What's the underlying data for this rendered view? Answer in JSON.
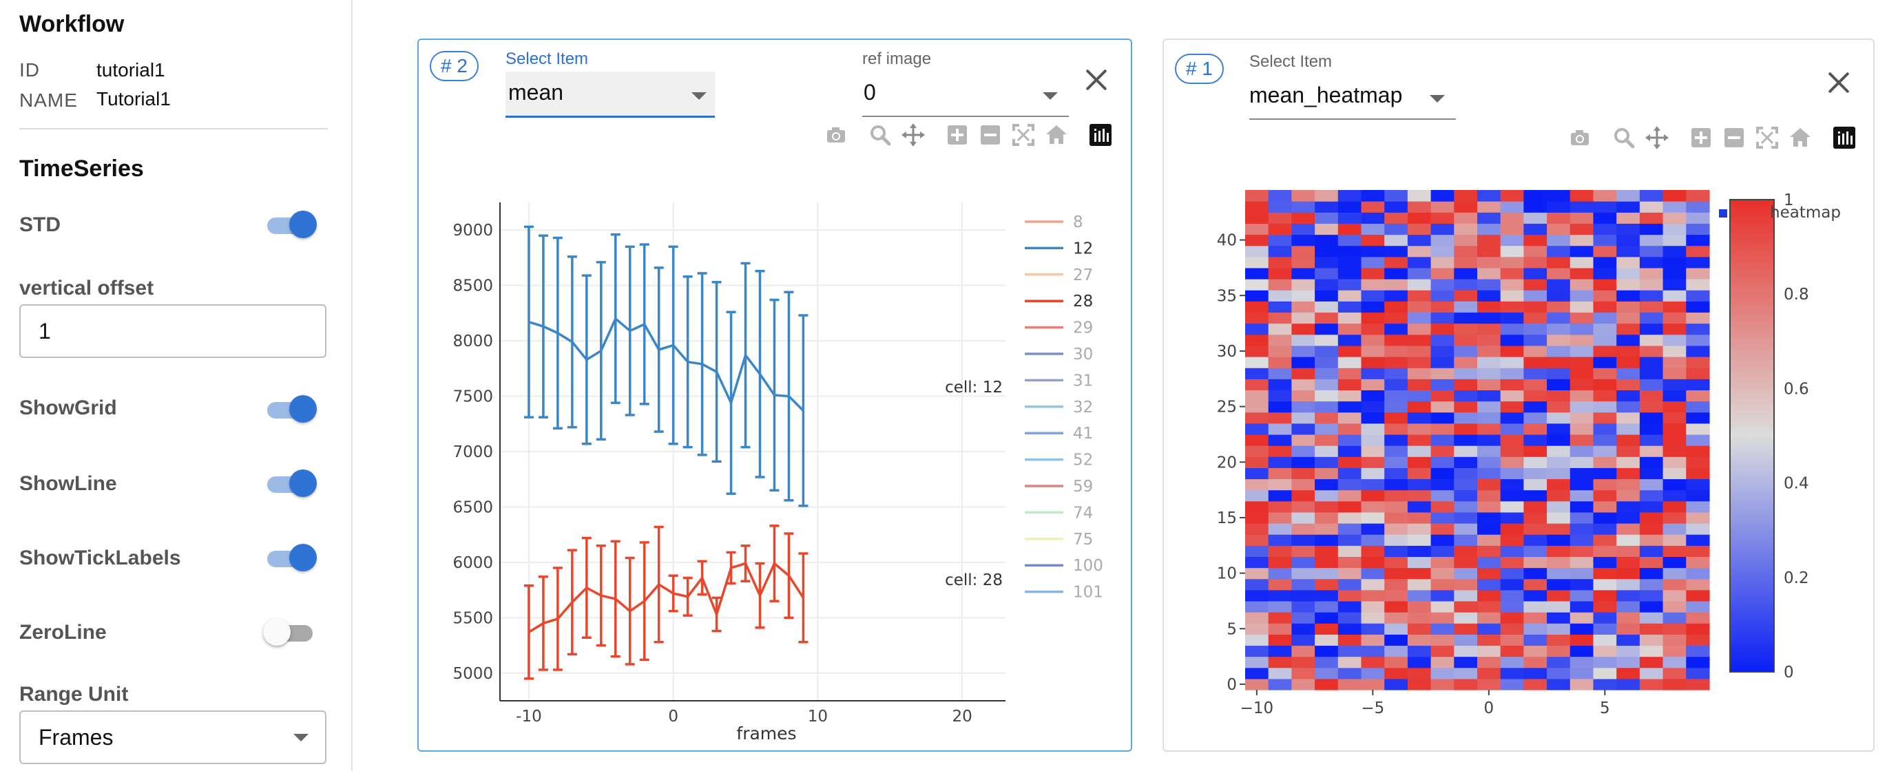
{
  "sidebar": {
    "workflow_title": "Workflow",
    "id_key": "ID",
    "id_value": "tutorial1",
    "name_key": "NAME",
    "name_value": "Tutorial1",
    "timeseries_title": "TimeSeries",
    "std_label": "STD",
    "std_on": true,
    "vertical_offset_label": "vertical offset",
    "vertical_offset_value": "1",
    "show_grid_label": "ShowGrid",
    "show_grid_on": true,
    "show_line_label": "ShowLine",
    "show_line_on": true,
    "show_tick_labels_label": "ShowTickLabels",
    "show_tick_labels_on": true,
    "zero_line_label": "ZeroLine",
    "zero_line_on": false,
    "range_unit_label": "Range Unit",
    "range_unit_value": "Frames"
  },
  "panel_left": {
    "badge_hash": "#",
    "badge_num": "2",
    "select_item_label": "Select Item",
    "select_item_value": "mean",
    "ref_image_label": "ref image",
    "ref_image_value": "0"
  },
  "panel_right": {
    "badge_hash": "#",
    "badge_num": "1",
    "select_item_label": "Select Item",
    "select_item_value": "mean_heatmap"
  },
  "modebar_icons": [
    "camera-icon",
    "zoom-icon",
    "pan-icon",
    "zoom-in-icon",
    "zoom-out-icon",
    "autoscale-icon",
    "reset-axes-icon",
    "plotly-logo-icon"
  ],
  "colors": {
    "accent": "#2f6fd0",
    "series_12": "#3a86c8",
    "series_28": "#e8472b",
    "heatmap_low": "#0a1ff5",
    "heatmap_mid": "#dcdcdc",
    "heatmap_high": "#e8302a"
  },
  "chart_data": [
    {
      "type": "line",
      "xlabel": "frames",
      "ylabel": "",
      "xlim": [
        -12,
        23
      ],
      "ylim": [
        4750,
        9250
      ],
      "x_ticks": [
        -10,
        0,
        10,
        20
      ],
      "y_ticks": [
        5000,
        5500,
        6000,
        6500,
        7000,
        7500,
        8000,
        8500,
        9000
      ],
      "grid": true,
      "x": [
        -10,
        -9,
        -8,
        -7,
        -6,
        -5,
        -4,
        -3,
        -2,
        -1,
        0,
        1,
        2,
        3,
        4,
        5,
        6,
        7,
        8,
        9
      ],
      "series": [
        {
          "name": "12",
          "color": "#3a86c8",
          "values": [
            8170,
            8130,
            8070,
            7990,
            7830,
            7910,
            8200,
            8090,
            8150,
            7920,
            7960,
            7810,
            7790,
            7720,
            7440,
            7870,
            7700,
            7510,
            7500,
            7370
          ],
          "error": [
            860,
            820,
            860,
            770,
            760,
            800,
            760,
            760,
            720,
            740,
            890,
            770,
            820,
            810,
            820,
            830,
            930,
            860,
            940,
            860
          ],
          "annotation": "cell: 12"
        },
        {
          "name": "28",
          "color": "#e8472b",
          "values": [
            5370,
            5450,
            5490,
            5640,
            5770,
            5700,
            5670,
            5560,
            5650,
            5800,
            5720,
            5690,
            5860,
            5530,
            5950,
            5990,
            5700,
            5990,
            5880,
            5680
          ],
          "error": [
            420,
            420,
            460,
            470,
            450,
            450,
            520,
            480,
            530,
            520,
            160,
            170,
            150,
            150,
            140,
            160,
            290,
            340,
            380,
            400
          ],
          "annotation": "cell: 28"
        }
      ],
      "legend": {
        "placement": "right",
        "entries": [
          {
            "name": "8",
            "color": "#f3a08a"
          },
          {
            "name": "12",
            "color": "#3a86c8"
          },
          {
            "name": "27",
            "color": "#f9c89e"
          },
          {
            "name": "28",
            "color": "#e8472b"
          },
          {
            "name": "29",
            "color": "#e87f7c"
          },
          {
            "name": "30",
            "color": "#7f8fc7"
          },
          {
            "name": "31",
            "color": "#8fa1d6"
          },
          {
            "name": "32",
            "color": "#92c6dc"
          },
          {
            "name": "41",
            "color": "#7fa5da"
          },
          {
            "name": "52",
            "color": "#95c2e8"
          },
          {
            "name": "59",
            "color": "#d98584"
          },
          {
            "name": "74",
            "color": "#c4ecc4"
          },
          {
            "name": "75",
            "color": "#f1f1ad"
          },
          {
            "name": "100",
            "color": "#7787c9"
          },
          {
            "name": "101",
            "color": "#8ab1e0"
          }
        ]
      }
    },
    {
      "type": "heatmap",
      "name": "heatmap",
      "xlim": [
        -10.5,
        9.5
      ],
      "ylim": [
        -0.5,
        44.5
      ],
      "x_ticks": [
        -10,
        -5,
        0,
        5
      ],
      "y_ticks": [
        0,
        5,
        10,
        15,
        20,
        25,
        30,
        35,
        40
      ],
      "n_cols": 20,
      "n_rows": 45,
      "zlim": [
        0,
        1
      ],
      "colorbar_ticks": [
        0,
        0.2,
        0.4,
        0.6,
        0.8,
        1
      ],
      "colorscale": [
        "#0a1ff5",
        "#dcdcdc",
        "#e8302a"
      ],
      "legend_placement": "top-right"
    }
  ]
}
